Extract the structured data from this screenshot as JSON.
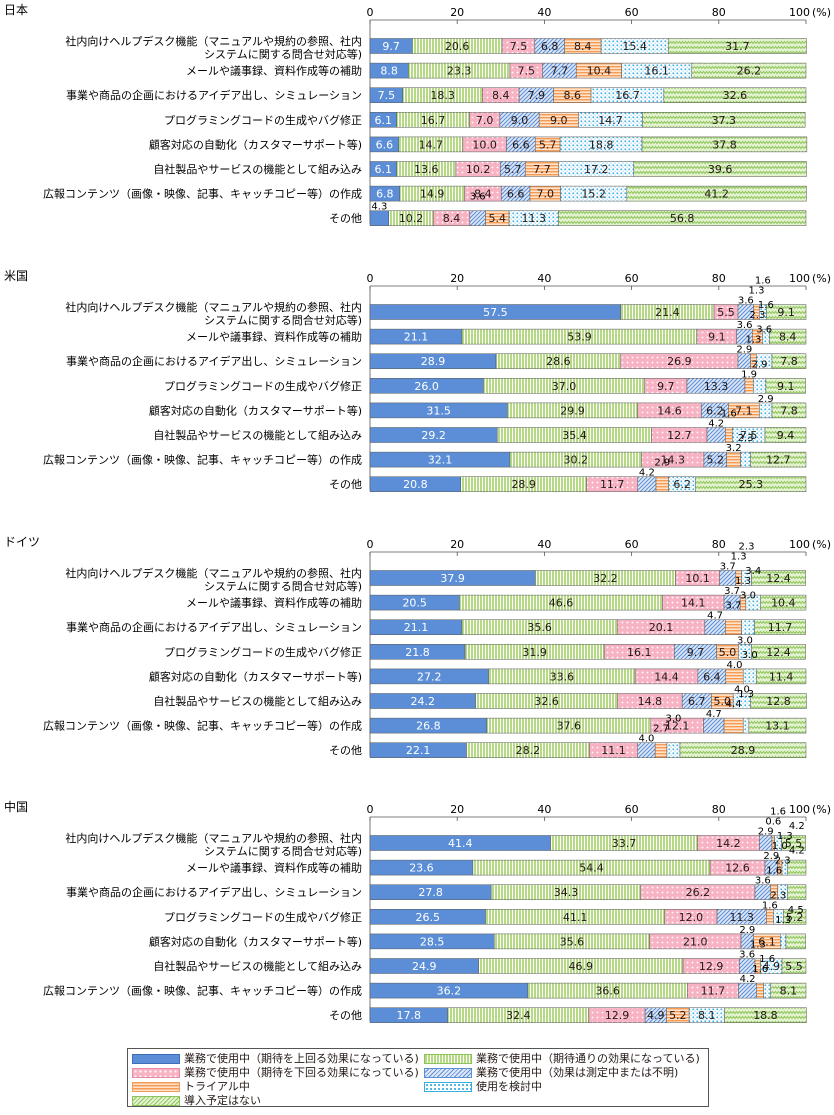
{
  "chart_data": {
    "type": "bar",
    "orientation": "horizontal-stacked",
    "unit": "(%)",
    "xlim": [
      0,
      100
    ],
    "xticks": [
      0,
      20,
      40,
      60,
      80,
      100
    ],
    "legend_position": "bottom",
    "categories": [
      [
        "社内向けヘルプデスク機能（マニュアルや規約の参照、社内",
        "システムに関する問合せ対応等)"
      ],
      [
        "メールや議事録、資料作成等の補助"
      ],
      [
        "事業や商品の企画におけるアイデア出し、シミュレーション"
      ],
      [
        "プログラミングコードの生成やバグ修正"
      ],
      [
        "顧客対応の自動化（カスタマーサポート等)"
      ],
      [
        "自社製品やサービスの機能として組み込み"
      ],
      [
        "広報コンテンツ（画像・映像、記事、キャッチコピー等）の作成"
      ],
      [
        "その他"
      ]
    ],
    "series": [
      {
        "name": "業務で使用中（期待を上回る効果になっている)",
        "color": "#5b8ed6",
        "pattern": "solid"
      },
      {
        "name": "業務で使用中（期待通りの効果になっている)",
        "color": "#b5d984",
        "pattern": "vlines"
      },
      {
        "name": "業務で使用中（期待を下回る効果になっている)",
        "color": "#f7b3c3",
        "pattern": "dots"
      },
      {
        "name": "業務で使用中（効果は測定中または不明)",
        "color": "#a9c1e8",
        "pattern": "diag"
      },
      {
        "name": "トライアル中",
        "color": "#f8b984",
        "pattern": "hlines"
      },
      {
        "name": "使用を検討中",
        "color": "#8fd3f0",
        "pattern": "grid"
      },
      {
        "name": "導入予定はない",
        "color": "#c9e6a7",
        "pattern": "zigzag"
      }
    ],
    "panels": [
      {
        "country": "日本",
        "values": [
          [
            9.7,
            20.6,
            7.5,
            6.8,
            8.4,
            15.4,
            31.7
          ],
          [
            8.8,
            23.3,
            7.5,
            7.7,
            10.4,
            16.1,
            26.2
          ],
          [
            7.5,
            18.3,
            8.4,
            7.9,
            8.6,
            16.7,
            32.6
          ],
          [
            6.1,
            16.7,
            7.0,
            9.0,
            9.0,
            14.7,
            37.3
          ],
          [
            6.6,
            14.7,
            10.0,
            6.6,
            5.7,
            18.8,
            37.8
          ],
          [
            6.1,
            13.6,
            10.2,
            5.7,
            7.7,
            17.2,
            39.6
          ],
          [
            6.8,
            14.9,
            8.4,
            6.6,
            7.0,
            15.2,
            41.2
          ],
          [
            4.3,
            10.2,
            8.4,
            3.6,
            5.4,
            11.3,
            56.8
          ]
        ]
      },
      {
        "country": "米国",
        "values": [
          [
            57.5,
            21.4,
            5.5,
            3.6,
            1.3,
            1.6,
            9.1
          ],
          [
            21.1,
            53.9,
            9.1,
            3.6,
            2.3,
            1.6,
            8.4
          ],
          [
            28.9,
            28.6,
            26.9,
            2.9,
            1.3,
            3.6,
            7.8
          ],
          [
            26.0,
            37.0,
            9.7,
            13.3,
            1.9,
            2.9,
            9.1
          ],
          [
            31.5,
            29.9,
            14.6,
            6.2,
            7.1,
            2.9,
            7.8
          ],
          [
            29.2,
            35.4,
            12.7,
            4.2,
            1.6,
            7.5,
            9.4
          ],
          [
            32.1,
            30.2,
            14.3,
            5.2,
            3.2,
            2.3,
            12.7
          ],
          [
            20.8,
            28.9,
            11.7,
            4.2,
            2.9,
            6.2,
            25.3
          ]
        ]
      },
      {
        "country": "ドイツ",
        "values": [
          [
            37.9,
            32.2,
            10.1,
            3.7,
            1.3,
            2.3,
            12.4
          ],
          [
            20.5,
            46.6,
            14.1,
            3.7,
            1.3,
            3.4,
            10.4
          ],
          [
            21.1,
            35.6,
            20.1,
            4.7,
            3.7,
            3.0,
            11.7
          ],
          [
            21.8,
            31.9,
            16.1,
            9.7,
            5.0,
            3.0,
            12.4
          ],
          [
            27.2,
            33.6,
            14.4,
            6.4,
            4.0,
            3.0,
            11.4
          ],
          [
            24.2,
            32.6,
            14.8,
            6.7,
            5.0,
            4.0,
            12.8
          ],
          [
            26.8,
            37.6,
            12.1,
            4.7,
            4.4,
            1.3,
            13.1
          ],
          [
            22.1,
            28.2,
            11.1,
            4.0,
            2.7,
            3.0,
            28.9
          ]
        ]
      },
      {
        "country": "中国",
        "values": [
          [
            41.4,
            33.7,
            14.2,
            2.9,
            0.6,
            1.6,
            5.5
          ],
          [
            23.6,
            54.4,
            12.6,
            2.9,
            1.0,
            1.3,
            4.2
          ],
          [
            27.8,
            34.3,
            26.2,
            3.6,
            1.6,
            2.3,
            4.2
          ],
          [
            26.5,
            41.1,
            12.0,
            11.3,
            1.6,
            2.3,
            5.2
          ],
          [
            28.5,
            35.6,
            21.0,
            2.9,
            6.1,
            1.3,
            4.5
          ],
          [
            24.9,
            46.9,
            12.9,
            3.6,
            1.3,
            4.9,
            5.5
          ],
          [
            36.2,
            36.6,
            11.7,
            4.2,
            1.6,
            1.6,
            8.1
          ],
          [
            17.8,
            32.4,
            12.9,
            4.9,
            5.2,
            8.1,
            18.8
          ]
        ]
      }
    ]
  }
}
